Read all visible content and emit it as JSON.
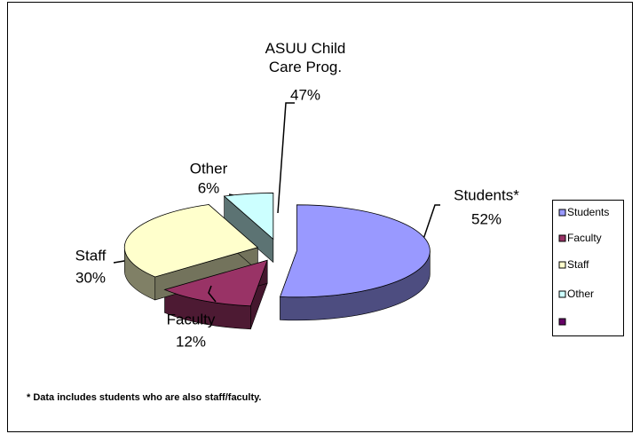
{
  "chart_data": {
    "type": "pie",
    "categories": [
      "Students",
      "Faculty",
      "Staff",
      "Other",
      null
    ],
    "values": [
      52,
      12,
      30,
      6,
      null
    ],
    "labels": [
      "Students*",
      "Faculty",
      "Staff",
      "Other",
      null
    ],
    "value_labels": [
      "52%",
      "12%",
      "30%",
      "6%",
      null
    ],
    "colors": [
      "#9999ff",
      "#993366",
      "#ffffcc",
      "#ccffff",
      "#660066"
    ],
    "annotation": {
      "text": "ASUU Child Care Prog.",
      "value_label": "47%"
    },
    "footnote": "* Data includes students who are also staff/faculty.",
    "legend": "right"
  }
}
